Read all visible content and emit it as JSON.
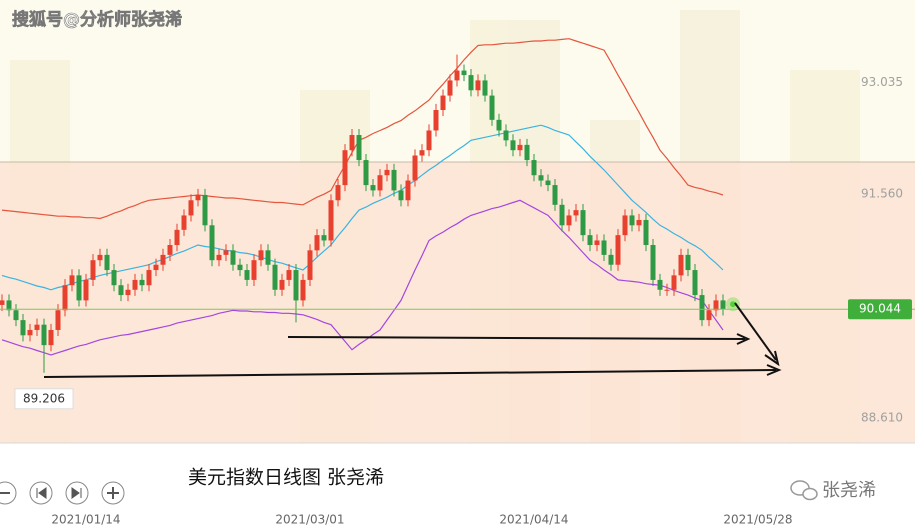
{
  "watermark": "搜狐号@分析师张尧浠",
  "caption": "美元指数日线图 张尧浠",
  "brand": "张尧浠",
  "chart_data": {
    "type": "candlestick",
    "categories": [
      null,
      null,
      null,
      null,
      null,
      null,
      null,
      null,
      null,
      null,
      null,
      null,
      "2021/01/14",
      null,
      null,
      null,
      null,
      null,
      null,
      null,
      null,
      null,
      null,
      null,
      null,
      null,
      null,
      null,
      null,
      null,
      null,
      null,
      null,
      null,
      null,
      null,
      null,
      null,
      null,
      null,
      null,
      null,
      null,
      null,
      "2021/03/01",
      null,
      null,
      null,
      null,
      null,
      null,
      null,
      null,
      null,
      null,
      null,
      null,
      null,
      null,
      null,
      null,
      null,
      null,
      null,
      null,
      null,
      null,
      null,
      null,
      null,
      null,
      null,
      null,
      null,
      null,
      null,
      "2021/04/14",
      null,
      null,
      null,
      null,
      null,
      null,
      null,
      null,
      null,
      null,
      null,
      null,
      null,
      null,
      null,
      null,
      null,
      null,
      null,
      null,
      null,
      null,
      null,
      null,
      null,
      null,
      null,
      null,
      null,
      null,
      null,
      "2021/05/28"
    ],
    "open": [
      90.1,
      90.16,
      90.03,
      89.9,
      89.7,
      89.77,
      89.84,
      89.57,
      89.77,
      90.03,
      90.36,
      90.49,
      90.16,
      90.43,
      90.69,
      90.76,
      90.56,
      90.36,
      90.23,
      90.3,
      90.43,
      90.36,
      90.56,
      90.63,
      90.76,
      90.89,
      91.09,
      91.28,
      91.48,
      91.55,
      91.15,
      90.69,
      90.76,
      90.82,
      90.63,
      90.56,
      90.43,
      90.69,
      90.82,
      90.63,
      90.3,
      90.43,
      90.56,
      90.16,
      90.43,
      90.82,
      91.02,
      90.95,
      91.48,
      91.68,
      92.14,
      92.34,
      92.01,
      91.68,
      91.61,
      91.81,
      91.88,
      91.61,
      91.48,
      91.74,
      92.07,
      92.14,
      92.4,
      92.67,
      92.86,
      93.06,
      93.19,
      93.13,
      92.93,
      93.06,
      92.86,
      92.54,
      92.4,
      92.27,
      92.14,
      92.21,
      92.01,
      91.81,
      91.74,
      91.68,
      91.42,
      91.15,
      91.28,
      91.35,
      91.02,
      90.89,
      90.95,
      90.76,
      90.63,
      91.02,
      91.28,
      91.15,
      91.22,
      90.89,
      90.43,
      90.3,
      90.3,
      90.49,
      90.76,
      90.56,
      90.23,
      89.9,
      90.03,
      90.16,
      null,
      null,
      null,
      null,
      null
    ],
    "high": [
      90.24,
      90.24,
      90.11,
      89.98,
      89.85,
      89.92,
      89.92,
      89.85,
      90.11,
      90.44,
      90.57,
      90.57,
      90.51,
      90.77,
      90.84,
      90.84,
      90.64,
      90.44,
      90.38,
      90.51,
      90.51,
      90.64,
      90.71,
      90.84,
      90.97,
      91.17,
      91.36,
      91.56,
      91.63,
      91.63,
      91.23,
      90.84,
      90.9,
      90.9,
      90.71,
      90.64,
      90.77,
      90.9,
      90.9,
      90.71,
      90.51,
      90.64,
      90.64,
      90.51,
      90.9,
      91.1,
      91.1,
      91.56,
      91.76,
      92.22,
      92.42,
      92.42,
      92.09,
      91.76,
      91.89,
      91.96,
      91.96,
      91.69,
      91.82,
      92.15,
      92.22,
      92.48,
      92.75,
      92.94,
      93.14,
      93.4,
      93.27,
      93.21,
      93.14,
      93.14,
      92.94,
      92.62,
      92.48,
      92.35,
      92.29,
      92.29,
      92.09,
      91.89,
      91.82,
      91.76,
      91.5,
      91.36,
      91.43,
      91.43,
      91.1,
      91.03,
      91.03,
      90.84,
      91.1,
      91.36,
      91.36,
      91.3,
      91.3,
      90.97,
      90.51,
      90.38,
      90.57,
      90.84,
      90.84,
      90.64,
      90.31,
      90.11,
      90.24,
      90.24,
      null,
      null,
      null,
      null,
      null
    ],
    "low": [
      90.02,
      89.95,
      89.82,
      89.62,
      89.62,
      89.69,
      89.206,
      89.49,
      89.69,
      89.95,
      90.28,
      90.08,
      90.08,
      90.35,
      90.61,
      90.48,
      90.28,
      90.15,
      90.15,
      90.22,
      90.28,
      90.28,
      90.48,
      90.55,
      90.68,
      90.81,
      91.01,
      91.2,
      91.4,
      91.07,
      90.61,
      90.61,
      90.68,
      90.55,
      90.48,
      90.35,
      90.35,
      90.61,
      90.55,
      90.22,
      90.22,
      90.35,
      89.87,
      90.08,
      90.35,
      90.74,
      90.87,
      90.87,
      91.4,
      91.6,
      92.06,
      91.93,
      91.6,
      91.53,
      91.53,
      91.73,
      91.53,
      91.4,
      91.4,
      91.66,
      91.99,
      92.06,
      92.32,
      92.59,
      92.78,
      92.98,
      93.05,
      92.85,
      92.85,
      92.78,
      92.46,
      92.32,
      92.19,
      92.06,
      92.06,
      91.93,
      91.73,
      91.66,
      91.6,
      91.34,
      91.07,
      91.07,
      91.2,
      90.94,
      90.81,
      90.81,
      90.68,
      90.55,
      90.55,
      90.94,
      91.07,
      91.07,
      90.81,
      90.35,
      90.22,
      90.22,
      90.22,
      90.41,
      90.48,
      90.15,
      89.82,
      89.82,
      89.95,
      89.96,
      null,
      null,
      null,
      null,
      null
    ],
    "close": [
      90.16,
      90.03,
      89.9,
      89.7,
      89.77,
      89.84,
      89.57,
      89.77,
      90.03,
      90.36,
      90.49,
      90.16,
      90.43,
      90.69,
      90.76,
      90.56,
      90.36,
      90.23,
      90.3,
      90.43,
      90.36,
      90.56,
      90.63,
      90.76,
      90.89,
      91.09,
      91.28,
      91.48,
      91.55,
      91.15,
      90.69,
      90.76,
      90.82,
      90.63,
      90.56,
      90.43,
      90.69,
      90.82,
      90.63,
      90.3,
      90.43,
      90.56,
      90.16,
      90.43,
      90.82,
      91.02,
      90.95,
      91.48,
      91.68,
      92.14,
      92.34,
      92.01,
      91.68,
      91.61,
      91.81,
      91.88,
      91.61,
      91.48,
      91.74,
      92.07,
      92.14,
      92.4,
      92.67,
      92.86,
      93.06,
      93.19,
      93.13,
      92.93,
      93.06,
      92.86,
      92.54,
      92.4,
      92.27,
      92.14,
      92.21,
      92.01,
      91.81,
      91.74,
      91.68,
      91.42,
      91.15,
      91.28,
      91.35,
      91.02,
      90.89,
      90.95,
      90.76,
      90.63,
      91.02,
      91.28,
      91.15,
      91.22,
      90.89,
      90.43,
      90.3,
      90.3,
      90.49,
      90.76,
      90.56,
      90.23,
      89.9,
      90.03,
      90.16,
      90.04,
      null,
      null,
      null,
      null,
      null
    ],
    "up_color": "#e8402f",
    "down_color": "#2e9a45",
    "series": [
      {
        "color": "#e3563f",
        "values": [
          91.35,
          91.34,
          91.33,
          91.32,
          91.31,
          91.3,
          91.29,
          91.28,
          91.27,
          91.27,
          91.26,
          91.26,
          91.25,
          91.25,
          91.24,
          91.27,
          91.31,
          91.34,
          91.38,
          91.41,
          91.45,
          91.48,
          91.49,
          91.5,
          91.51,
          91.52,
          91.53,
          91.54,
          91.55,
          91.54,
          91.53,
          91.52,
          91.51,
          91.51,
          91.5,
          91.49,
          91.48,
          91.47,
          91.46,
          91.45,
          91.45,
          91.44,
          91.43,
          91.42,
          91.47,
          91.52,
          91.56,
          91.61,
          91.78,
          91.94,
          92.11,
          92.27,
          92.31,
          92.36,
          92.4,
          92.44,
          92.49,
          92.53,
          92.6,
          92.66,
          92.73,
          92.8,
          92.91,
          93.01,
          93.12,
          93.22,
          93.33,
          93.43,
          93.52,
          93.53,
          93.53,
          93.54,
          93.55,
          93.55,
          93.56,
          93.57,
          93.58,
          93.58,
          93.59,
          93.59,
          93.6,
          93.61,
          93.58,
          93.55,
          93.52,
          93.49,
          93.46,
          93.3,
          93.13,
          92.97,
          92.8,
          92.64,
          92.47,
          92.31,
          92.14,
          92.03,
          91.91,
          91.8,
          91.68,
          91.65,
          91.63,
          91.6,
          91.58,
          91.55,
          null,
          null,
          null,
          null,
          null
        ]
      },
      {
        "color": "#3ab4e0",
        "values": [
          90.49,
          90.46,
          90.44,
          90.41,
          90.38,
          90.35,
          90.33,
          90.3,
          90.33,
          90.35,
          90.38,
          90.41,
          90.43,
          90.46,
          90.49,
          90.51,
          90.53,
          90.55,
          90.57,
          90.59,
          90.61,
          90.63,
          90.67,
          90.7,
          90.74,
          90.78,
          90.81,
          90.85,
          90.89,
          90.87,
          90.86,
          90.84,
          90.82,
          90.81,
          90.79,
          90.78,
          90.76,
          90.73,
          90.7,
          90.67,
          90.65,
          90.62,
          90.59,
          90.56,
          90.64,
          90.73,
          90.81,
          90.89,
          91.01,
          91.12,
          91.24,
          91.35,
          91.39,
          91.44,
          91.48,
          91.52,
          91.57,
          91.61,
          91.68,
          91.74,
          91.81,
          91.88,
          91.94,
          92.01,
          92.07,
          92.14,
          92.2,
          92.27,
          92.29,
          92.31,
          92.33,
          92.35,
          92.37,
          92.39,
          92.41,
          92.43,
          92.45,
          92.47,
          92.44,
          92.4,
          92.37,
          92.34,
          92.25,
          92.16,
          92.06,
          91.97,
          91.88,
          91.78,
          91.68,
          91.58,
          91.48,
          91.4,
          91.32,
          91.23,
          91.15,
          91.1,
          91.04,
          90.99,
          90.93,
          90.88,
          90.82,
          90.73,
          90.65,
          90.56,
          null,
          null,
          null,
          null,
          null
        ]
      },
      {
        "color": "#a347e0",
        "values": [
          89.64,
          89.61,
          89.58,
          89.55,
          89.53,
          89.5,
          89.47,
          89.44,
          89.47,
          89.5,
          89.53,
          89.56,
          89.58,
          89.61,
          89.64,
          89.66,
          89.68,
          89.7,
          89.71,
          89.73,
          89.75,
          89.77,
          89.79,
          89.81,
          89.83,
          89.86,
          89.88,
          89.9,
          89.92,
          89.94,
          89.96,
          89.99,
          90.01,
          90.03,
          90.02,
          90.02,
          90.01,
          90.01,
          90.0,
          90.0,
          89.99,
          89.99,
          89.98,
          89.97,
          89.94,
          89.91,
          89.87,
          89.84,
          89.73,
          89.62,
          89.51,
          89.58,
          89.64,
          89.71,
          89.77,
          89.9,
          90.03,
          90.16,
          90.36,
          90.56,
          90.75,
          90.95,
          91.01,
          91.06,
          91.12,
          91.17,
          91.23,
          91.28,
          91.31,
          91.34,
          91.37,
          91.39,
          91.42,
          91.45,
          91.48,
          91.43,
          91.38,
          91.33,
          91.28,
          91.18,
          91.08,
          90.99,
          90.89,
          90.79,
          90.69,
          90.63,
          90.56,
          90.5,
          90.43,
          90.42,
          90.41,
          90.4,
          90.38,
          90.37,
          90.36,
          90.33,
          90.29,
          90.26,
          90.23,
          90.19,
          90.16,
          90.03,
          89.9,
          89.77,
          null,
          null,
          null,
          null,
          null
        ]
      }
    ],
    "ylim": [
      88.28,
      94.12
    ],
    "yticks": [
      93.035,
      {
        "value": 91.56,
        "label": "91.560"
      },
      {
        "value": 88.61,
        "label": "88.610"
      }
    ],
    "last_price": 90.044,
    "low_label": 89.206
  }
}
